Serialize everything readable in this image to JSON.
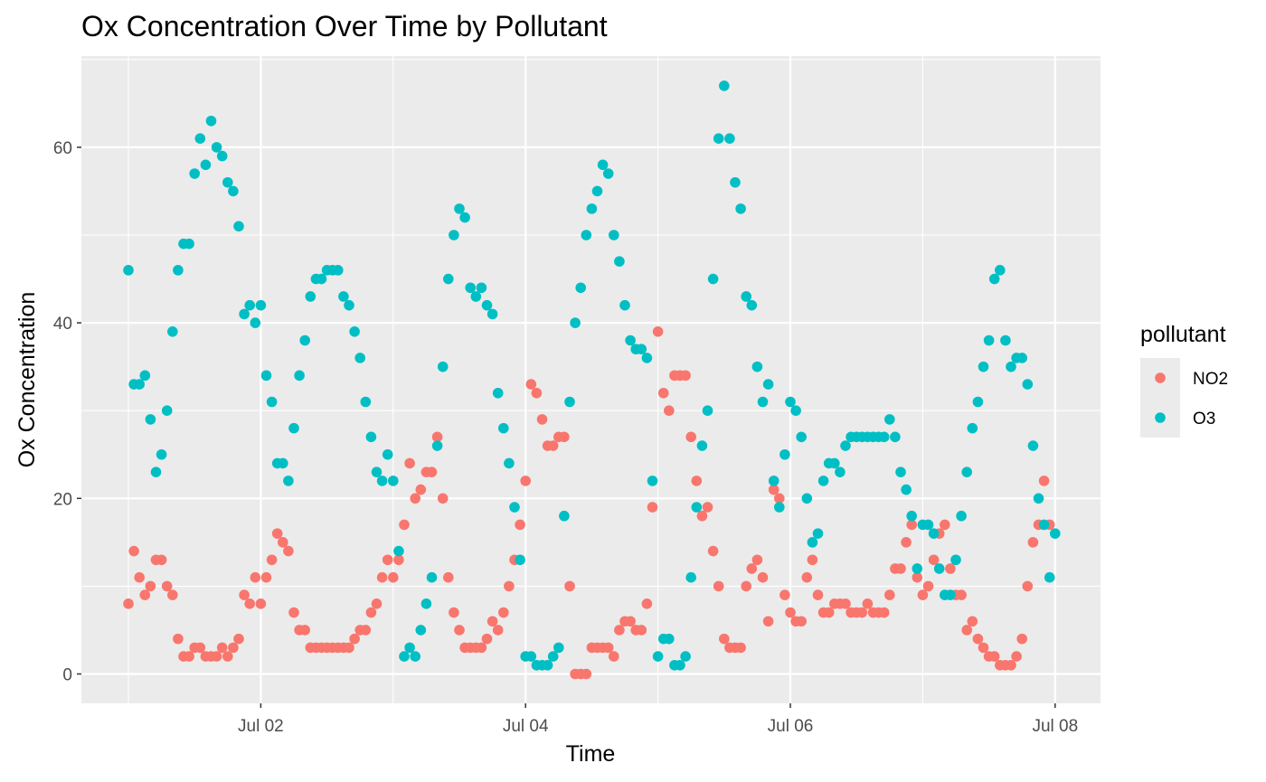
{
  "chart_data": {
    "type": "scatter",
    "title": "Ox Concentration Over Time by Pollutant",
    "xlabel": "Time",
    "ylabel": "Ox Concentration",
    "x_axis": {
      "type": "time",
      "range": [
        "2017-07-01T00:00",
        "2017-07-08T00:00"
      ],
      "ticks": [
        {
          "value": "2017-07-02T00:00",
          "label": "Jul 02"
        },
        {
          "value": "2017-07-04T00:00",
          "label": "Jul 04"
        },
        {
          "value": "2017-07-06T00:00",
          "label": "Jul 06"
        },
        {
          "value": "2017-07-08T00:00",
          "label": "Jul 08"
        }
      ]
    },
    "y_axis": {
      "range": [
        0,
        67
      ],
      "ticks": [
        0,
        20,
        40,
        60
      ]
    },
    "grid": true,
    "legend": {
      "title": "pollutant",
      "position": "right"
    },
    "x_start": "2017-07-01T00:00",
    "interval_hours": 1,
    "series": [
      {
        "name": "NO2",
        "color": "#F8766D",
        "values": [
          8,
          14,
          11,
          9,
          10,
          13,
          13,
          10,
          9,
          4,
          2,
          2,
          3,
          3,
          2,
          2,
          2,
          3,
          2,
          3,
          4,
          9,
          8,
          11,
          8,
          11,
          13,
          16,
          15,
          14,
          7,
          5,
          5,
          3,
          3,
          3,
          3,
          3,
          3,
          3,
          3,
          4,
          5,
          5,
          7,
          8,
          11,
          13,
          11,
          13,
          17,
          24,
          20,
          21,
          23,
          23,
          27,
          20,
          11,
          7,
          5,
          3,
          3,
          3,
          3,
          4,
          6,
          5,
          7,
          10,
          13,
          17,
          22,
          33,
          32,
          29,
          26,
          26,
          27,
          27,
          10,
          0,
          0,
          0,
          3,
          3,
          3,
          3,
          2,
          5,
          6,
          6,
          5,
          5,
          8,
          19,
          39,
          32,
          30,
          34,
          34,
          34,
          27,
          22,
          18,
          19,
          14,
          10,
          4,
          3,
          3,
          3,
          10,
          12,
          13,
          11,
          6,
          21,
          20,
          9,
          7,
          6,
          6,
          11,
          13,
          9,
          7,
          7,
          8,
          8,
          8,
          7,
          7,
          7,
          8,
          7,
          7,
          7,
          9,
          12,
          12,
          15,
          17,
          11,
          9,
          10,
          13,
          16,
          17,
          12,
          9,
          9,
          5,
          6,
          4,
          3,
          2,
          2,
          1,
          1,
          1,
          2,
          4,
          10,
          15,
          17,
          22,
          17
        ]
      },
      {
        "name": "O3",
        "color": "#00BFC4",
        "values": [
          46,
          33,
          33,
          34,
          29,
          23,
          25,
          30,
          39,
          46,
          49,
          49,
          57,
          61,
          58,
          63,
          60,
          59,
          56,
          55,
          51,
          41,
          42,
          40,
          42,
          34,
          31,
          24,
          24,
          22,
          28,
          34,
          38,
          43,
          45,
          45,
          46,
          46,
          46,
          43,
          42,
          39,
          36,
          31,
          27,
          23,
          22,
          25,
          22,
          14,
          2,
          3,
          2,
          5,
          8,
          11,
          26,
          35,
          45,
          50,
          53,
          52,
          44,
          43,
          44,
          42,
          41,
          32,
          28,
          24,
          19,
          13,
          2,
          2,
          1,
          1,
          1,
          2,
          3,
          18,
          31,
          40,
          44,
          50,
          53,
          55,
          58,
          57,
          50,
          47,
          42,
          38,
          37,
          37,
          36,
          22,
          2,
          4,
          4,
          1,
          1,
          2,
          11,
          19,
          26,
          30,
          45,
          61,
          67,
          61,
          56,
          53,
          43,
          42,
          35,
          31,
          33,
          22,
          19,
          25,
          31,
          30,
          27,
          20,
          15,
          16,
          22,
          24,
          24,
          23,
          26,
          27,
          27,
          27,
          27,
          27,
          27,
          27,
          29,
          27,
          23,
          21,
          18,
          12,
          17,
          17,
          16,
          12,
          9,
          9,
          13,
          18,
          23,
          28,
          31,
          35,
          38,
          45,
          46,
          38,
          35,
          36,
          36,
          33,
          26,
          20,
          17,
          11,
          16
        ]
      }
    ]
  }
}
